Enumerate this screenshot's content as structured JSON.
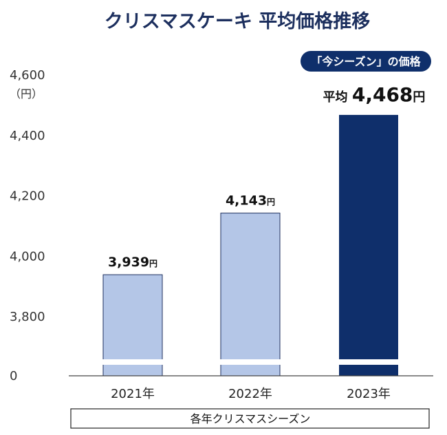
{
  "chart_data": {
    "type": "bar",
    "title": "クリスマスケーキ 平均価格推移",
    "categories": [
      "2021年",
      "2022年",
      "2023年"
    ],
    "values": [
      3939,
      4143,
      4468
    ],
    "data_labels": [
      "3,939",
      "4,143",
      "4,468"
    ],
    "data_label_unit": "円",
    "highlight_prefix": "平均",
    "y_unit": "（円）",
    "yticks": [
      0,
      3800,
      4000,
      4200,
      4400,
      4600
    ],
    "ytick_labels": [
      "0",
      "3,800",
      "4,000",
      "4,200",
      "4,400",
      "4,600"
    ],
    "ylim": [
      3700,
      4600
    ],
    "axis_break": true,
    "badge": "「今シーズン」の価格",
    "xaxis_caption": "各年クリスマスシーズン",
    "grid": false,
    "colors": {
      "bar": "#b4c6e7",
      "bar_highlight": "#0f2f6b",
      "bar_outline": "#1c2f5e",
      "title": "#1c2f5e",
      "badge": "#0f2f6b"
    }
  }
}
